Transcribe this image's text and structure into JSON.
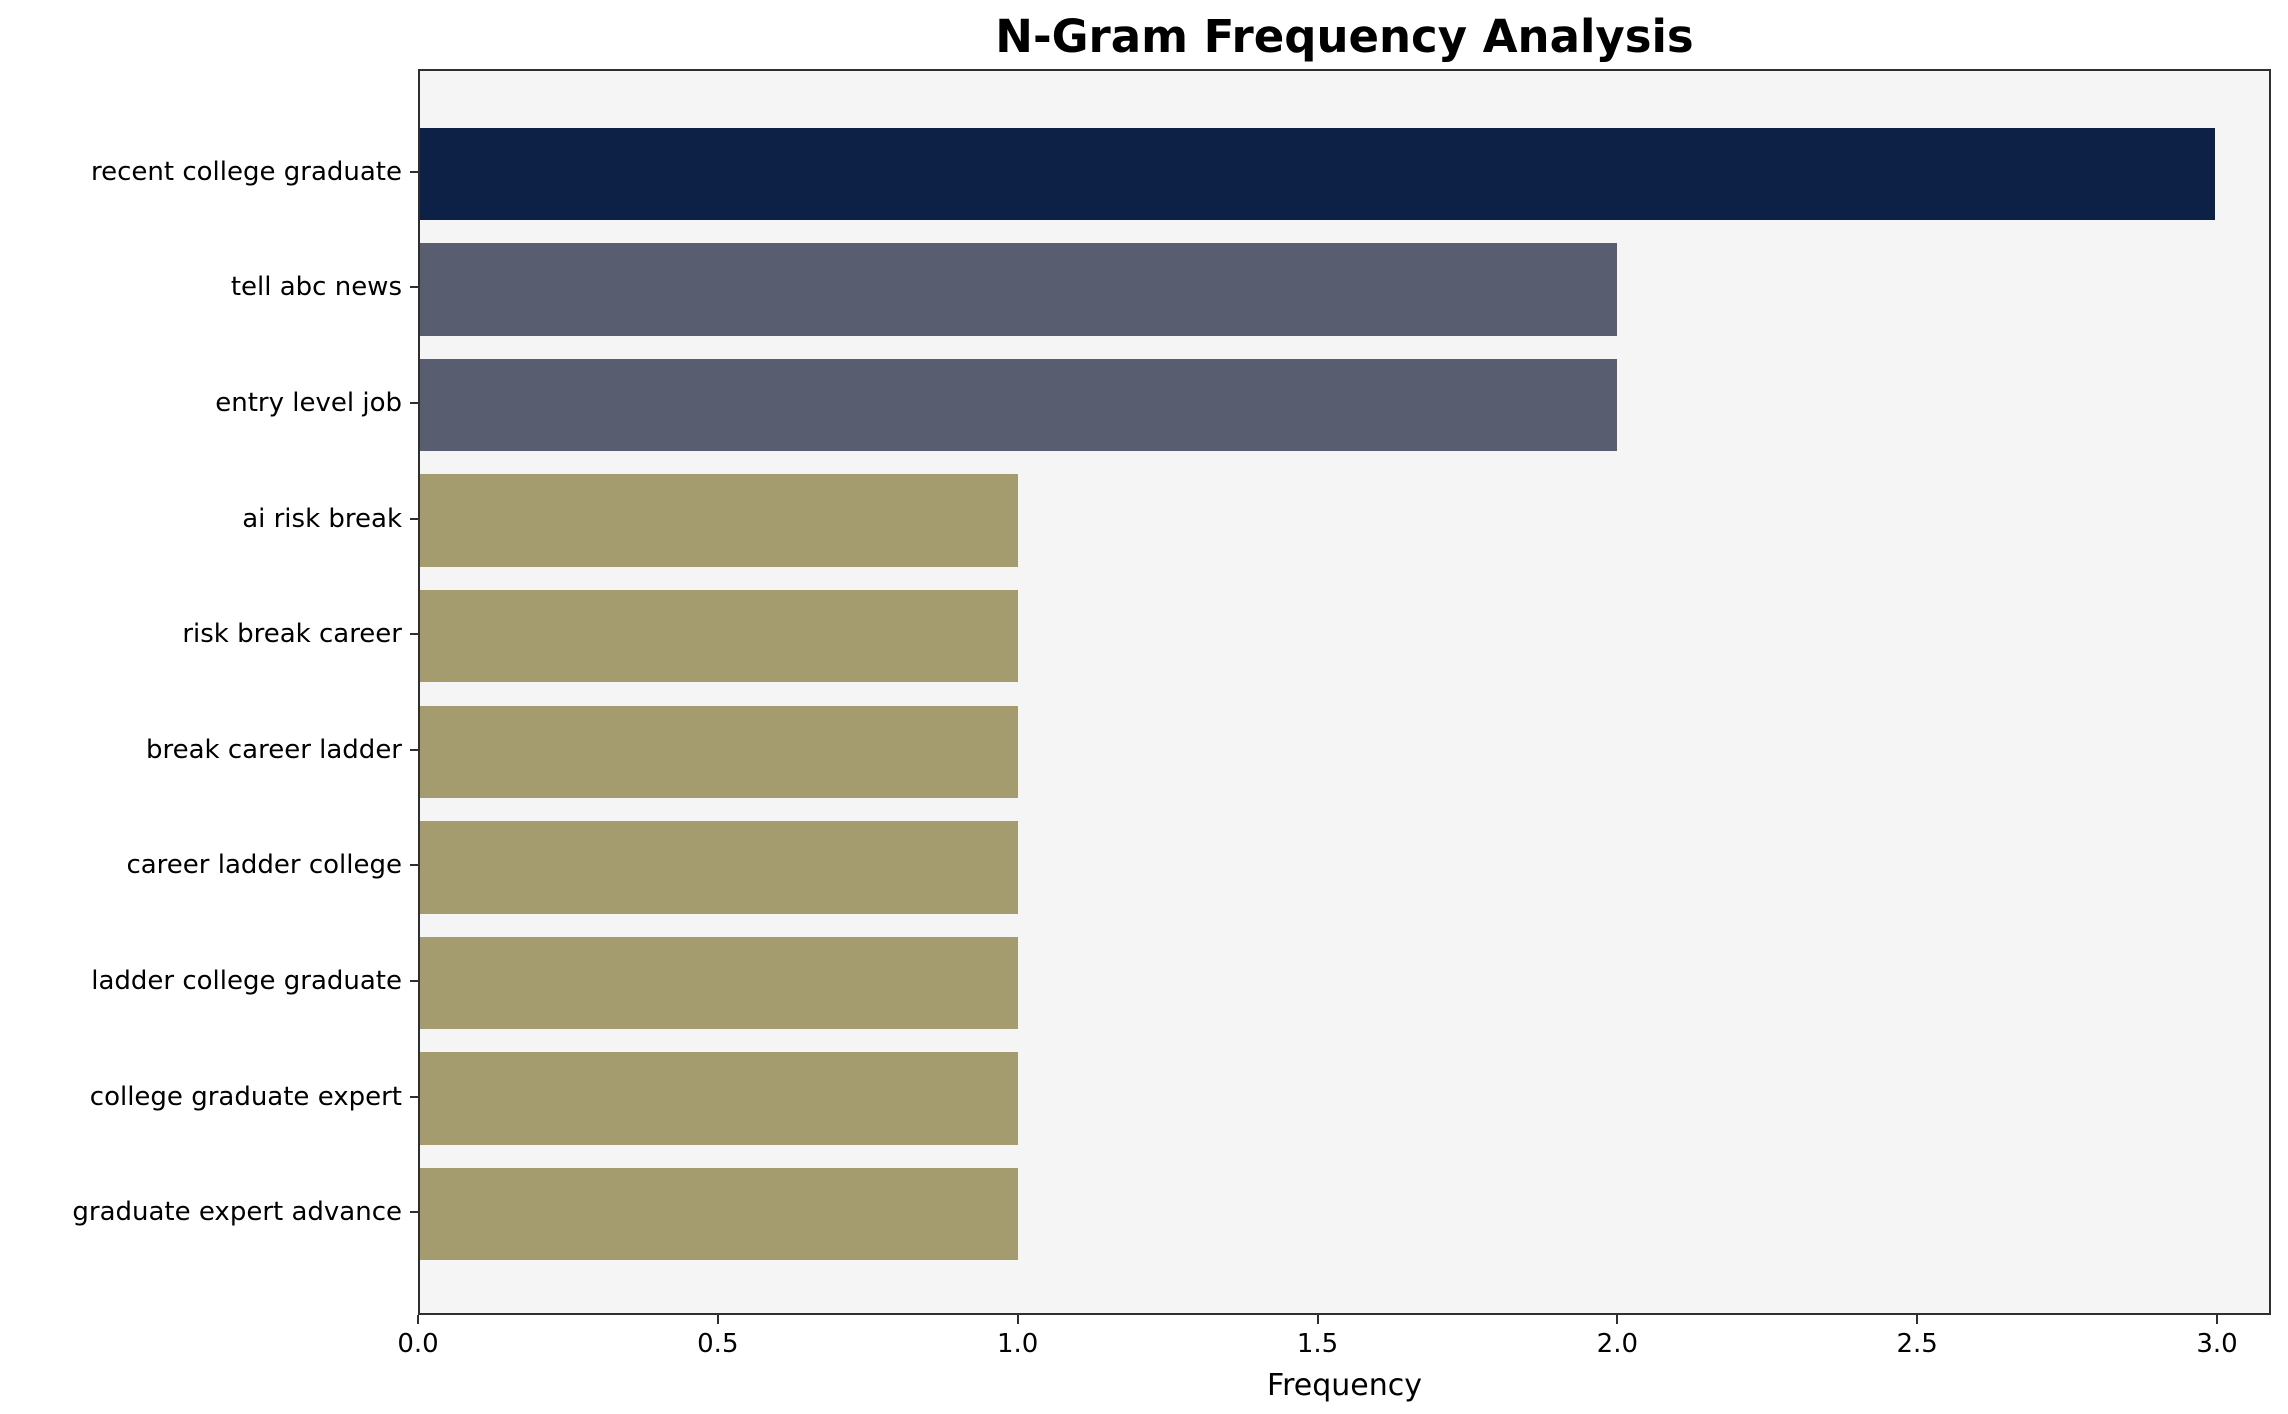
{
  "chart_data": {
    "type": "bar",
    "orientation": "horizontal",
    "title": "N-Gram Frequency Analysis",
    "xlabel": "Frequency",
    "ylabel": "",
    "categories": [
      "recent college graduate",
      "tell abc news",
      "entry level job",
      "ai risk break",
      "risk break career",
      "break career ladder",
      "career ladder college",
      "ladder college graduate",
      "college graduate expert",
      "graduate expert advance"
    ],
    "values": [
      3,
      2,
      2,
      1,
      1,
      1,
      1,
      1,
      1,
      1
    ],
    "bar_colors": [
      "#0c2145",
      "#585d6f",
      "#585d6f",
      "#a49c6f",
      "#a49c6f",
      "#a49c6f",
      "#a49c6f",
      "#a49c6f",
      "#a49c6f",
      "#a49c6f"
    ],
    "xlim": [
      0,
      3.09
    ],
    "xtick_values": [
      0.0,
      0.5,
      1.0,
      1.5,
      2.0,
      2.5,
      3.0
    ],
    "xtick_labels": [
      "0.0",
      "0.5",
      "1.0",
      "1.5",
      "2.0",
      "2.5",
      "3.0"
    ],
    "plot_background": "#f5f5f5",
    "figure_background": "#ffffff",
    "grid": false,
    "legend": false
  }
}
